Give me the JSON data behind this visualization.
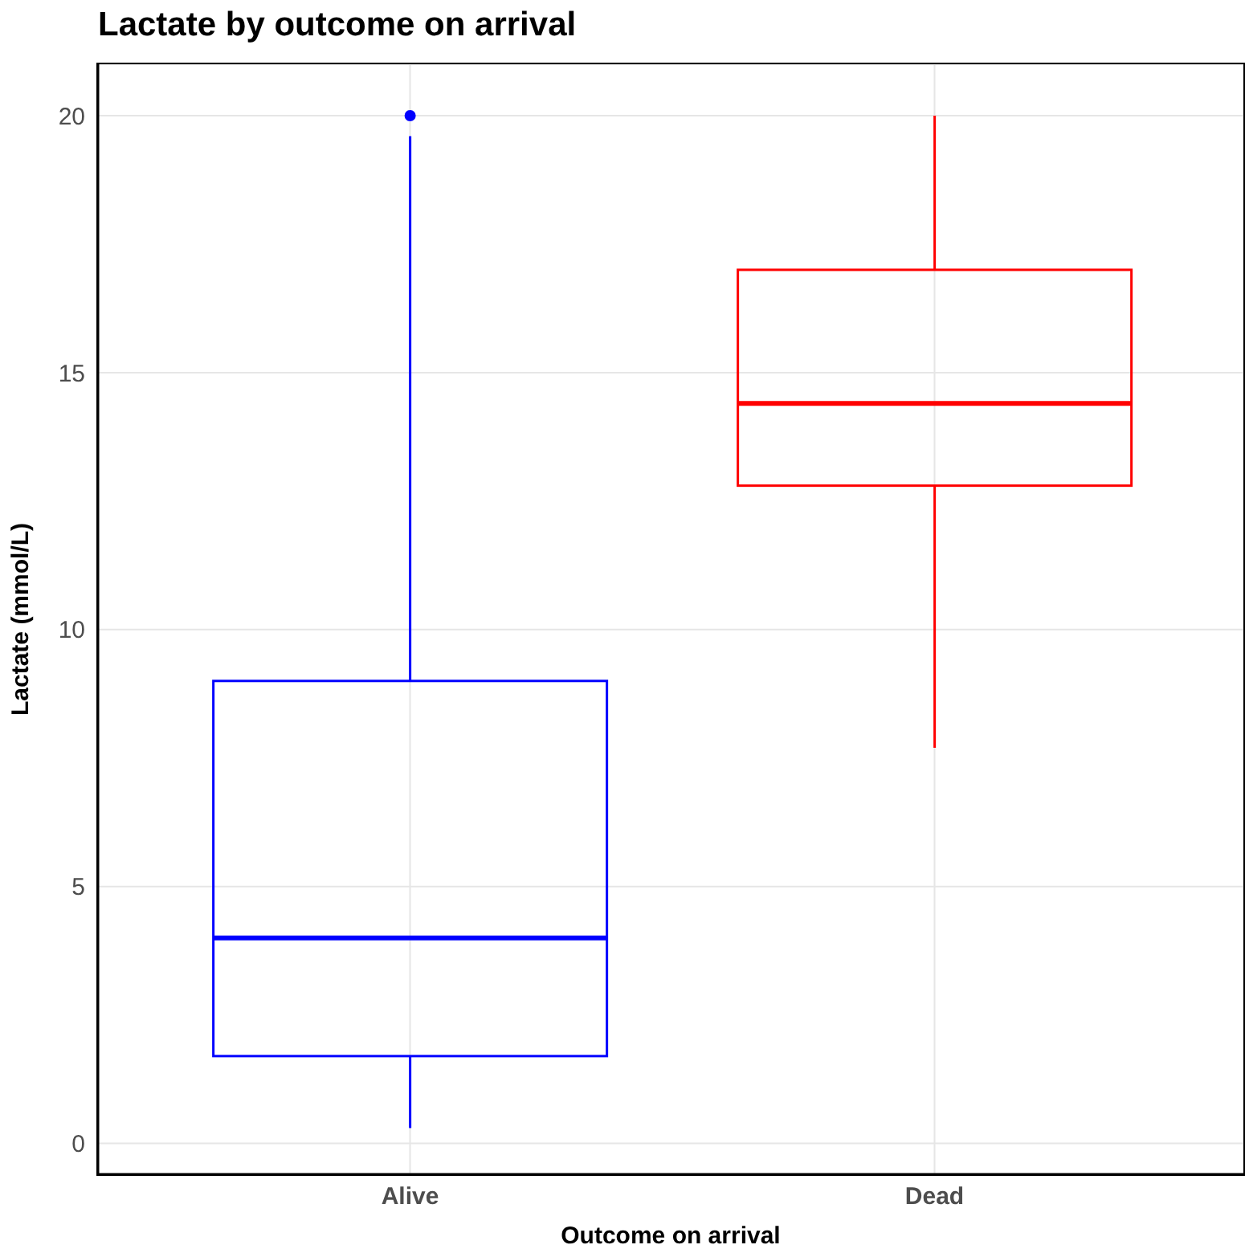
{
  "chart_data": {
    "type": "box",
    "title": "Lactate by outcome on arrival",
    "xlabel": "Outcome on arrival",
    "ylabel": "Lactate (mmol/L)",
    "categories": [
      "Alive",
      "Dead"
    ],
    "colors": [
      "#0000ff",
      "#ff0000"
    ],
    "boxes": [
      {
        "low": 0.3,
        "q1": 1.7,
        "median": 4.0,
        "q3": 9.0,
        "high": 19.6,
        "outliers": [
          20
        ]
      },
      {
        "low": 7.7,
        "q1": 12.8,
        "median": 14.4,
        "q3": 17.0,
        "high": 20
      }
    ],
    "ylim": [
      -0.6,
      21
    ],
    "yticks": [
      0,
      5,
      10,
      15,
      20
    ],
    "grid": true
  }
}
